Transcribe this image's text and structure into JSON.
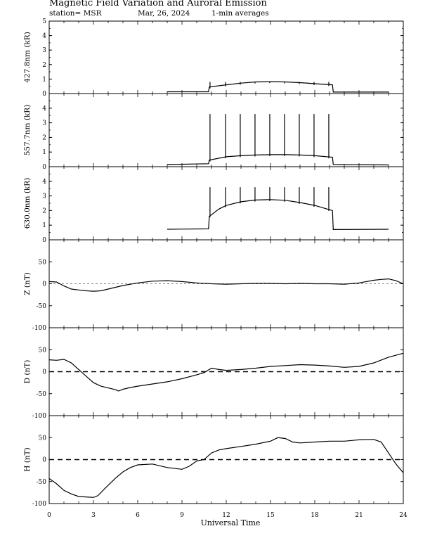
{
  "header": {
    "title": "Magnetic Field Variation and Auroral Emission",
    "station": "station= MSR",
    "date": "Mar, 26,  2024",
    "averaging": "1-min averages"
  },
  "colors": {
    "line": "#000000",
    "background": "#ffffff"
  },
  "chart_data": [
    {
      "type": "line",
      "ylabel": "427.8nm (kR)",
      "ylim": [
        0,
        5
      ],
      "yticks": [
        0,
        1,
        2,
        3,
        4,
        5
      ],
      "series": [
        {
          "x": [
            8.0,
            10.8,
            10.85,
            12,
            13,
            14,
            15,
            16,
            17,
            18,
            19.2,
            19.25,
            23.0
          ],
          "y": [
            0.12,
            0.12,
            0.45,
            0.6,
            0.72,
            0.8,
            0.82,
            0.8,
            0.75,
            0.68,
            0.6,
            0.1,
            0.1
          ]
        }
      ],
      "spikes": {
        "x": [
          10.9,
          11.95,
          12.95,
          13.95,
          14.95,
          15.95,
          16.95,
          17.95,
          18.95
        ],
        "to": 0.8
      }
    },
    {
      "type": "line",
      "ylabel": "557.7nm (kR)",
      "ylim": [
        0,
        5
      ],
      "yticks": [
        0,
        1,
        2,
        3,
        4
      ],
      "series": [
        {
          "x": [
            8.0,
            10.8,
            10.85,
            12,
            13,
            14,
            15,
            16,
            17,
            18,
            19.2,
            19.25,
            23.0
          ],
          "y": [
            0.15,
            0.2,
            0.45,
            0.68,
            0.75,
            0.8,
            0.82,
            0.82,
            0.8,
            0.75,
            0.65,
            0.15,
            0.12
          ]
        }
      ],
      "spikes": {
        "x": [
          10.9,
          11.95,
          12.95,
          13.95,
          14.95,
          15.95,
          16.95,
          17.95,
          18.95
        ],
        "to": 3.6
      }
    },
    {
      "type": "line",
      "ylabel": "630.0nm (kR)",
      "ylim": [
        0,
        5
      ],
      "yticks": [
        0,
        1,
        2,
        3,
        4
      ],
      "series": [
        {
          "x": [
            8.0,
            10.8,
            10.85,
            11.5,
            12,
            13,
            14,
            15,
            16,
            17,
            18,
            19.2,
            19.25,
            23.0
          ],
          "y": [
            0.72,
            0.75,
            1.6,
            2.1,
            2.35,
            2.6,
            2.72,
            2.75,
            2.7,
            2.55,
            2.35,
            2.0,
            0.7,
            0.72
          ]
        }
      ],
      "spikes": {
        "x": [
          10.9,
          11.95,
          12.95,
          13.95,
          14.95,
          15.95,
          16.95,
          17.95,
          18.95
        ],
        "to": 3.6
      }
    },
    {
      "type": "line",
      "ylabel": "Z (nT)",
      "ylim": [
        -100,
        100
      ],
      "yticks": [
        -100,
        -50,
        0,
        50
      ],
      "zero_line": true,
      "series": [
        {
          "x": [
            0,
            0.5,
            1,
            1.5,
            2,
            2.5,
            3,
            3.5,
            4,
            4.5,
            5,
            6,
            7,
            8,
            9,
            10,
            11,
            12,
            13,
            14,
            15,
            16,
            17,
            18,
            19,
            20,
            21,
            22,
            22.5,
            23,
            23.5,
            24
          ],
          "y": [
            5,
            4,
            -5,
            -12,
            -14,
            -16,
            -17,
            -16,
            -12,
            -8,
            -4,
            2,
            6,
            7,
            5,
            2,
            0,
            -1,
            0,
            1,
            1,
            0,
            1,
            0,
            0,
            -1,
            2,
            8,
            10,
            11,
            7,
            0
          ]
        }
      ]
    },
    {
      "type": "line",
      "ylabel": "D (nT)",
      "ylim": [
        -100,
        100
      ],
      "yticks": [
        -100,
        -50,
        0,
        50
      ],
      "zero_line": true,
      "series": [
        {
          "x": [
            0,
            0.5,
            1,
            1.5,
            2,
            2.5,
            3,
            3.5,
            4,
            4.5,
            4.7,
            5,
            5.5,
            6,
            7,
            8,
            9,
            10,
            10.5,
            11,
            11.5,
            12,
            13,
            14,
            15,
            16,
            17,
            18,
            19,
            20,
            21,
            22,
            23,
            24
          ],
          "y": [
            27,
            26,
            28,
            20,
            5,
            -10,
            -25,
            -33,
            -37,
            -41,
            -44,
            -40,
            -36,
            -33,
            -28,
            -23,
            -16,
            -7,
            -2,
            8,
            5,
            3,
            5,
            8,
            12,
            14,
            16,
            15,
            13,
            10,
            12,
            20,
            33,
            42
          ]
        }
      ]
    },
    {
      "type": "line",
      "ylabel": "H (nT)",
      "ylim": [
        -100,
        100
      ],
      "yticks": [
        -100,
        -50,
        0,
        50
      ],
      "zero_line": true,
      "series": [
        {
          "x": [
            0,
            0.5,
            1,
            1.5,
            2,
            2.5,
            3,
            3.3,
            3.8,
            4.5,
            5,
            5.5,
            6,
            7,
            8,
            9,
            9.5,
            10,
            10.5,
            11,
            11.5,
            12,
            13,
            14,
            15,
            15.5,
            16,
            16.5,
            17,
            18,
            19,
            20,
            21,
            22,
            22.5,
            23,
            23.5,
            24
          ],
          "y": [
            -43,
            -55,
            -70,
            -78,
            -84,
            -85,
            -86,
            -82,
            -65,
            -42,
            -28,
            -18,
            -12,
            -10,
            -18,
            -22,
            -15,
            -3,
            0,
            15,
            22,
            25,
            30,
            35,
            42,
            50,
            48,
            40,
            38,
            40,
            42,
            42,
            45,
            46,
            40,
            15,
            -10,
            -30
          ]
        }
      ]
    }
  ],
  "xaxis": {
    "label": "Universal Time",
    "range": [
      0,
      24
    ],
    "ticks": [
      "0",
      "3",
      "6",
      "9",
      "12",
      "15",
      "18",
      "21",
      "24"
    ]
  }
}
